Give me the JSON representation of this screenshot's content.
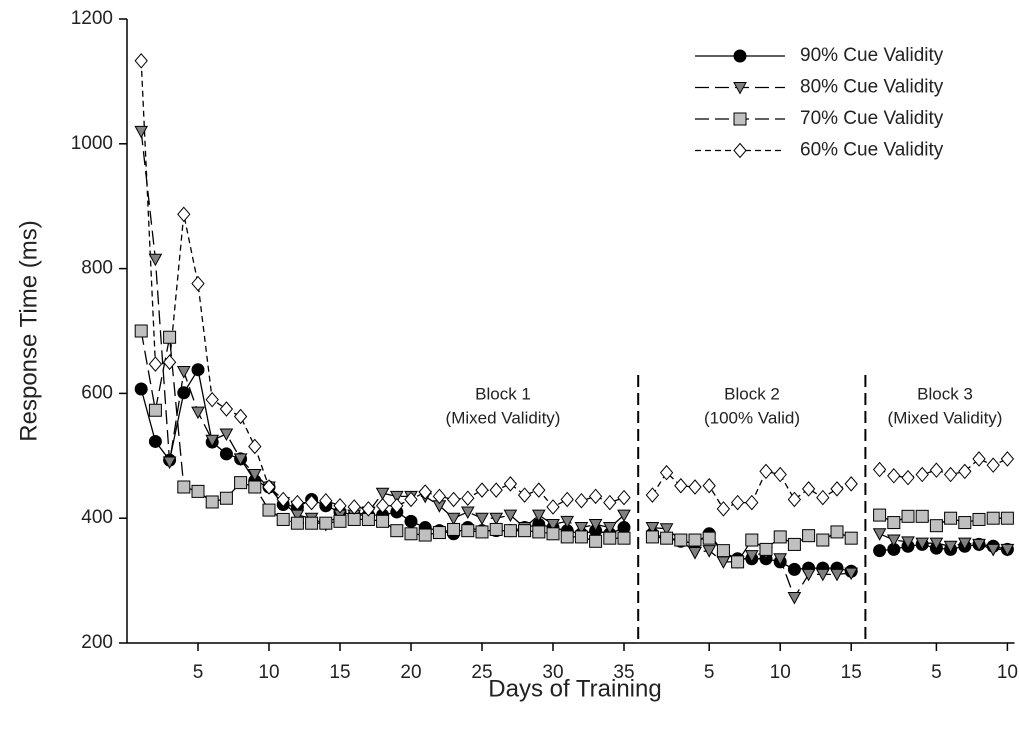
{
  "chart_data": {
    "type": "line",
    "ylabel": "Response Time (ms)",
    "xlabel": "Days of Training",
    "ylim": [
      200,
      1200
    ],
    "yticks": [
      200,
      400,
      600,
      800,
      1000,
      1200
    ],
    "legend": "upper right",
    "series": [
      {
        "name": "90% Cue Validity",
        "marker": "circle",
        "color": "#000000",
        "dash": "solid"
      },
      {
        "name": "80% Cue Validity",
        "marker": "triangle-down",
        "color": "#808080",
        "dash": "long"
      },
      {
        "name": "70% Cue Validity",
        "marker": "square",
        "color": "#c0c0c0",
        "dash": "long"
      },
      {
        "name": "60% Cue Validity",
        "marker": "diamond",
        "color": "#ffffff",
        "dash": "short"
      }
    ],
    "panels": [
      {
        "title": "Block 1",
        "subtitle": "(Mixed Validity)",
        "xlim": [
          0,
          36
        ],
        "xticks": [
          5,
          10,
          15,
          20,
          25,
          30,
          35
        ],
        "x": [
          1,
          2,
          3,
          4,
          5,
          6,
          7,
          8,
          9,
          10,
          11,
          12,
          13,
          14,
          15,
          16,
          17,
          18,
          19,
          20,
          21,
          22,
          23,
          24,
          25,
          26,
          27,
          28,
          29,
          30,
          31,
          32,
          33,
          34,
          35
        ],
        "series_values": [
          [
            607,
            523,
            493,
            601,
            638,
            522,
            503,
            495,
            460,
            450,
            422,
            418,
            430,
            420,
            410,
            405,
            405,
            405,
            410,
            395,
            385,
            380,
            375,
            385,
            380,
            380,
            380,
            385,
            390,
            385,
            380,
            375,
            380,
            375,
            385
          ],
          [
            1020,
            815,
            490,
            635,
            570,
            525,
            535,
            495,
            470,
            450,
            425,
            405,
            400,
            390,
            405,
            405,
            410,
            440,
            435,
            435,
            435,
            420,
            400,
            410,
            400,
            400,
            405,
            385,
            405,
            390,
            395,
            385,
            390,
            385,
            405
          ],
          [
            700,
            573,
            690,
            450,
            443,
            426,
            432,
            457,
            450,
            413,
            398,
            392,
            392,
            392,
            395,
            398,
            398,
            395,
            380,
            375,
            373,
            377,
            382,
            380,
            378,
            382,
            380,
            380,
            378,
            375,
            370,
            370,
            363,
            368,
            368
          ],
          [
            1133,
            647,
            650,
            887,
            776,
            590,
            575,
            563,
            515,
            450,
            430,
            425,
            425,
            428,
            420,
            418,
            415,
            420,
            420,
            430,
            442,
            435,
            430,
            432,
            445,
            445,
            455,
            437,
            445,
            418,
            430,
            428,
            435,
            425,
            433
          ]
        ]
      },
      {
        "title": "Block 2",
        "subtitle": "(100% Valid)",
        "xlim": [
          0,
          16
        ],
        "xticks": [
          5,
          10,
          15
        ],
        "x": [
          1,
          2,
          3,
          4,
          5,
          6,
          7,
          8,
          9,
          10,
          11,
          12,
          13,
          14,
          15
        ],
        "series_values": [
          [
            375,
            368,
            363,
            360,
            375,
            345,
            335,
            335,
            335,
            330,
            318,
            320,
            320,
            320,
            315
          ],
          [
            385,
            383,
            365,
            345,
            348,
            330,
            330,
            340,
            345,
            335,
            273,
            310,
            310,
            310,
            312
          ],
          [
            370,
            368,
            365,
            365,
            368,
            348,
            330,
            365,
            350,
            370,
            358,
            372,
            365,
            378,
            368
          ],
          [
            437,
            473,
            452,
            450,
            452,
            415,
            425,
            425,
            475,
            470,
            430,
            447,
            433,
            447,
            455
          ]
        ]
      },
      {
        "title": "Block 3",
        "subtitle": "(Mixed Validity)",
        "xlim": [
          0,
          10.5
        ],
        "xticks": [
          5,
          10
        ],
        "x": [
          1,
          2,
          3,
          4,
          5,
          6,
          7,
          8,
          9,
          10
        ],
        "series_values": [
          [
            348,
            350,
            355,
            358,
            352,
            350,
            355,
            358,
            355,
            350
          ],
          [
            375,
            365,
            362,
            360,
            360,
            355,
            360,
            358,
            350,
            350
          ],
          [
            405,
            393,
            403,
            403,
            388,
            400,
            393,
            398,
            400,
            400
          ],
          [
            478,
            468,
            465,
            470,
            477,
            470,
            475,
            495,
            485,
            495
          ]
        ]
      }
    ]
  }
}
